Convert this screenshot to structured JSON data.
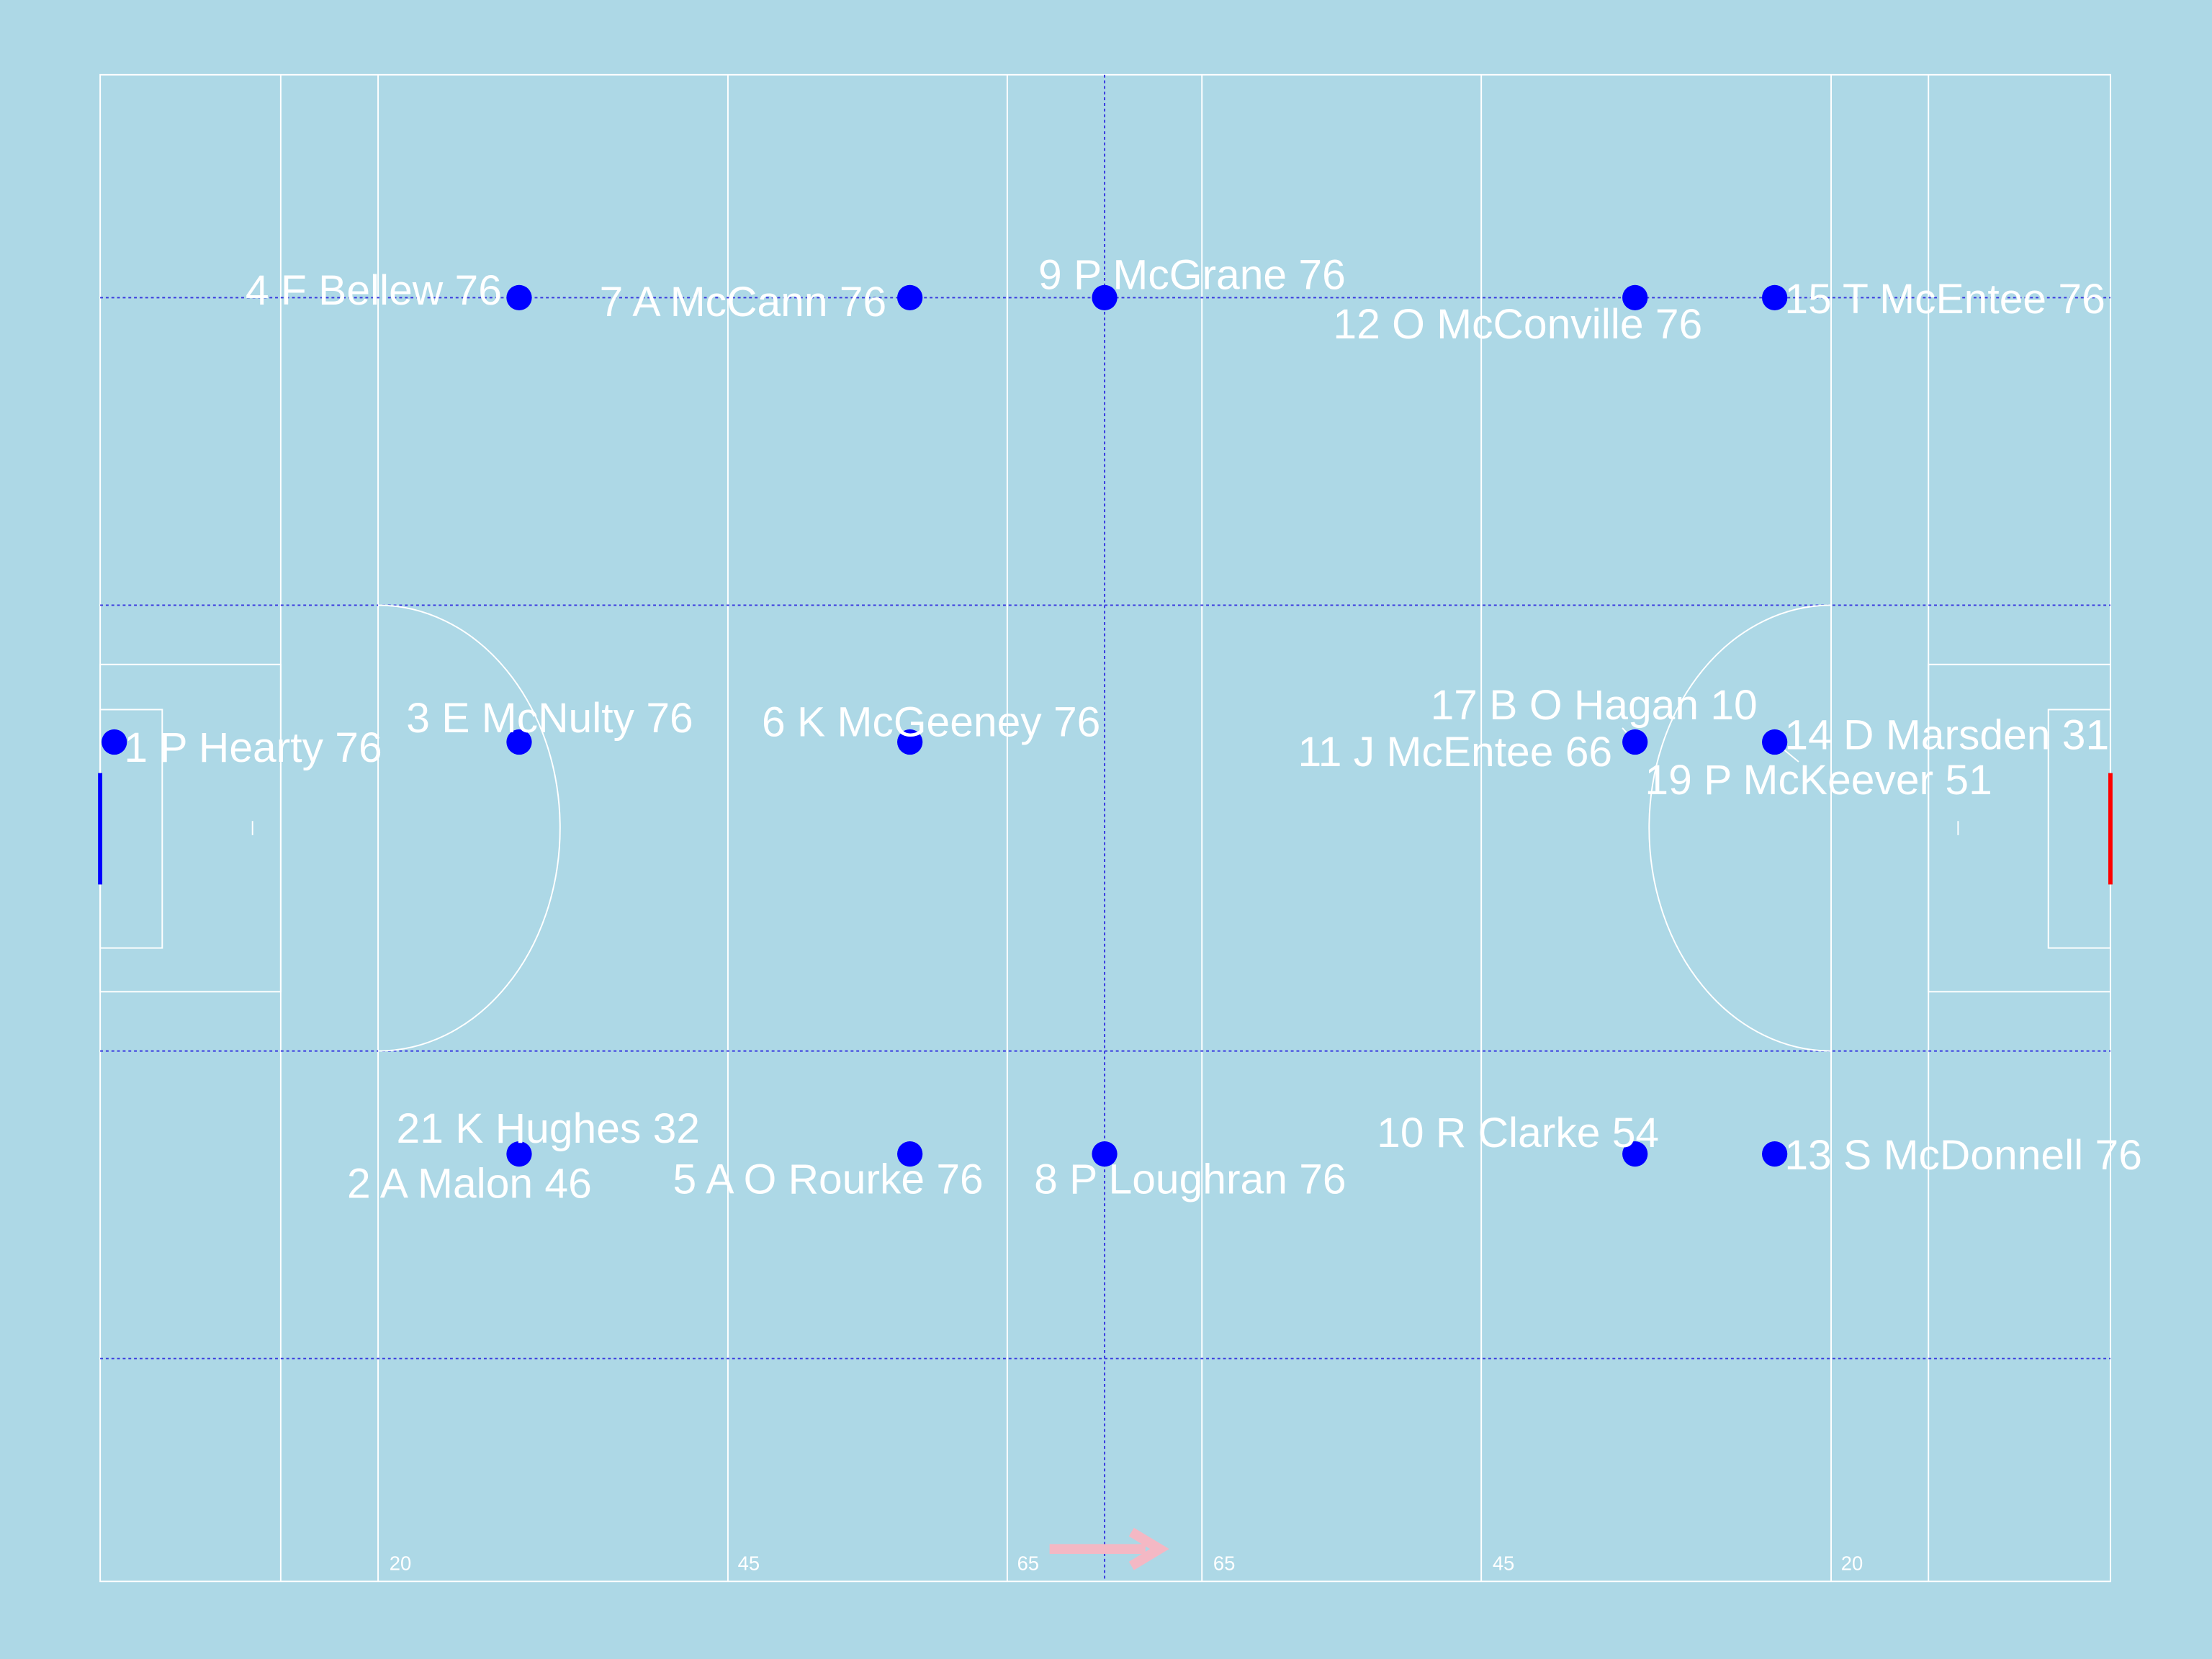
{
  "pitch": {
    "distance_labels": [
      "20",
      "45",
      "65",
      "65",
      "45",
      "20"
    ]
  },
  "players": [
    {
      "label": "1 P Hearty 76"
    },
    {
      "label": "3 E McNulty 76"
    },
    {
      "label": "4 F Bellew 76"
    },
    {
      "label": "7 A McCann 76"
    },
    {
      "label": "9 P McGrane 76"
    },
    {
      "label": "12 O McConville 76"
    },
    {
      "label": "15 T McEntee 76"
    },
    {
      "label": "6 K McGeeney 76"
    },
    {
      "label": "17 B O Hagan 10"
    },
    {
      "label": "11 J McEntee 66"
    },
    {
      "label": "14 D Marsden 31"
    },
    {
      "label": "19 P McKeever 51"
    },
    {
      "label": "21 K Hughes 32"
    },
    {
      "label": "2 A Malon 46"
    },
    {
      "label": "5 A O Rourke 76"
    },
    {
      "label": "8 P Loughran 76"
    },
    {
      "label": "10 R Clarke 54"
    },
    {
      "label": "13 S McDonnell 76"
    }
  ]
}
